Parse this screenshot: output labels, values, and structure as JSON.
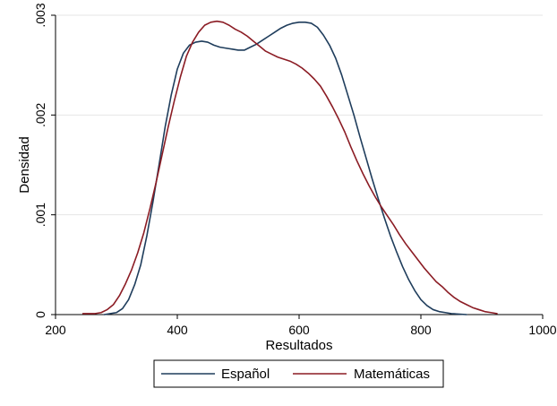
{
  "chart_data": {
    "type": "line",
    "xlabel": "Resultados",
    "ylabel": "Densidad",
    "xlim": [
      200,
      1000
    ],
    "ylim": [
      0,
      0.003
    ],
    "x_ticks": [
      200,
      400,
      600,
      800,
      1000
    ],
    "x_tick_labels": [
      "200",
      "400",
      "600",
      "800",
      "1000"
    ],
    "y_ticks": [
      0,
      0.001,
      0.002,
      0.003
    ],
    "y_tick_labels": [
      "0",
      ".001",
      ".002",
      ".003"
    ],
    "grid": true,
    "legend_placement": "bottom",
    "series": [
      {
        "name": "Español",
        "color": "#1f3d5c",
        "points": [
          [
            280,
            0.0
          ],
          [
            290,
            1e-05
          ],
          [
            300,
            2e-05
          ],
          [
            310,
            6e-05
          ],
          [
            320,
            0.00015
          ],
          [
            330,
            0.0003
          ],
          [
            340,
            0.0005
          ],
          [
            350,
            0.00079
          ],
          [
            360,
            0.00113
          ],
          [
            370,
            0.0015
          ],
          [
            380,
            0.00188
          ],
          [
            390,
            0.0022
          ],
          [
            400,
            0.00246
          ],
          [
            410,
            0.00262
          ],
          [
            420,
            0.0027
          ],
          [
            430,
            0.00273
          ],
          [
            440,
            0.00274
          ],
          [
            450,
            0.00273
          ],
          [
            460,
            0.0027
          ],
          [
            470,
            0.00268
          ],
          [
            480,
            0.00267
          ],
          [
            490,
            0.00266
          ],
          [
            500,
            0.00265
          ],
          [
            510,
            0.00265
          ],
          [
            520,
            0.00268
          ],
          [
            530,
            0.00271
          ],
          [
            540,
            0.00275
          ],
          [
            550,
            0.00279
          ],
          [
            560,
            0.00283
          ],
          [
            570,
            0.00287
          ],
          [
            580,
            0.0029
          ],
          [
            590,
            0.00292
          ],
          [
            600,
            0.00293
          ],
          [
            610,
            0.00293
          ],
          [
            620,
            0.00292
          ],
          [
            630,
            0.00288
          ],
          [
            640,
            0.0028
          ],
          [
            650,
            0.0027
          ],
          [
            660,
            0.00257
          ],
          [
            670,
            0.0024
          ],
          [
            680,
            0.0022
          ],
          [
            690,
            0.002
          ],
          [
            700,
            0.00178
          ],
          [
            710,
            0.00157
          ],
          [
            720,
            0.00136
          ],
          [
            730,
            0.00116
          ],
          [
            740,
            0.00097
          ],
          [
            750,
            0.00079
          ],
          [
            760,
            0.00063
          ],
          [
            770,
            0.00048
          ],
          [
            780,
            0.00035
          ],
          [
            790,
            0.00024
          ],
          [
            800,
            0.00015
          ],
          [
            810,
            9e-05
          ],
          [
            820,
            5e-05
          ],
          [
            830,
            3e-05
          ],
          [
            840,
            2e-05
          ],
          [
            850,
            1e-05
          ],
          [
            875,
            0.0
          ]
        ]
      },
      {
        "name": "Matemáticas",
        "color": "#8b1c24",
        "points": [
          [
            245,
            1e-05
          ],
          [
            255,
            1e-05
          ],
          [
            265,
            1e-05
          ],
          [
            275,
            2e-05
          ],
          [
            285,
            5e-05
          ],
          [
            295,
            0.0001
          ],
          [
            305,
            0.00019
          ],
          [
            315,
            0.00031
          ],
          [
            325,
            0.00045
          ],
          [
            335,
            0.00062
          ],
          [
            345,
            0.00082
          ],
          [
            355,
            0.00106
          ],
          [
            365,
            0.00132
          ],
          [
            375,
            0.0016
          ],
          [
            385,
            0.00188
          ],
          [
            395,
            0.00214
          ],
          [
            405,
            0.00238
          ],
          [
            415,
            0.00259
          ],
          [
            425,
            0.00273
          ],
          [
            435,
            0.00283
          ],
          [
            445,
            0.0029
          ],
          [
            455,
            0.00293
          ],
          [
            465,
            0.00294
          ],
          [
            475,
            0.00293
          ],
          [
            485,
            0.0029
          ],
          [
            495,
            0.00286
          ],
          [
            505,
            0.00283
          ],
          [
            515,
            0.00279
          ],
          [
            525,
            0.00274
          ],
          [
            535,
            0.00269
          ],
          [
            545,
            0.00264
          ],
          [
            555,
            0.00261
          ],
          [
            565,
            0.00258
          ],
          [
            575,
            0.00256
          ],
          [
            585,
            0.00254
          ],
          [
            595,
            0.00251
          ],
          [
            605,
            0.00247
          ],
          [
            615,
            0.00242
          ],
          [
            625,
            0.00236
          ],
          [
            635,
            0.00229
          ],
          [
            645,
            0.00219
          ],
          [
            655,
            0.00208
          ],
          [
            665,
            0.00196
          ],
          [
            675,
            0.00183
          ],
          [
            685,
            0.00168
          ],
          [
            695,
            0.00154
          ],
          [
            705,
            0.00141
          ],
          [
            715,
            0.00129
          ],
          [
            725,
            0.00118
          ],
          [
            735,
            0.00108
          ],
          [
            745,
            0.00099
          ],
          [
            755,
            0.0009
          ],
          [
            765,
            0.0008
          ],
          [
            775,
            0.00071
          ],
          [
            785,
            0.00063
          ],
          [
            795,
            0.00055
          ],
          [
            805,
            0.00047
          ],
          [
            815,
            0.0004
          ],
          [
            825,
            0.00033
          ],
          [
            835,
            0.00028
          ],
          [
            845,
            0.00022
          ],
          [
            855,
            0.00017
          ],
          [
            865,
            0.00013
          ],
          [
            875,
            0.0001
          ],
          [
            885,
            7e-05
          ],
          [
            895,
            5e-05
          ],
          [
            905,
            3e-05
          ],
          [
            915,
            2e-05
          ],
          [
            925,
            1e-05
          ]
        ]
      }
    ]
  }
}
